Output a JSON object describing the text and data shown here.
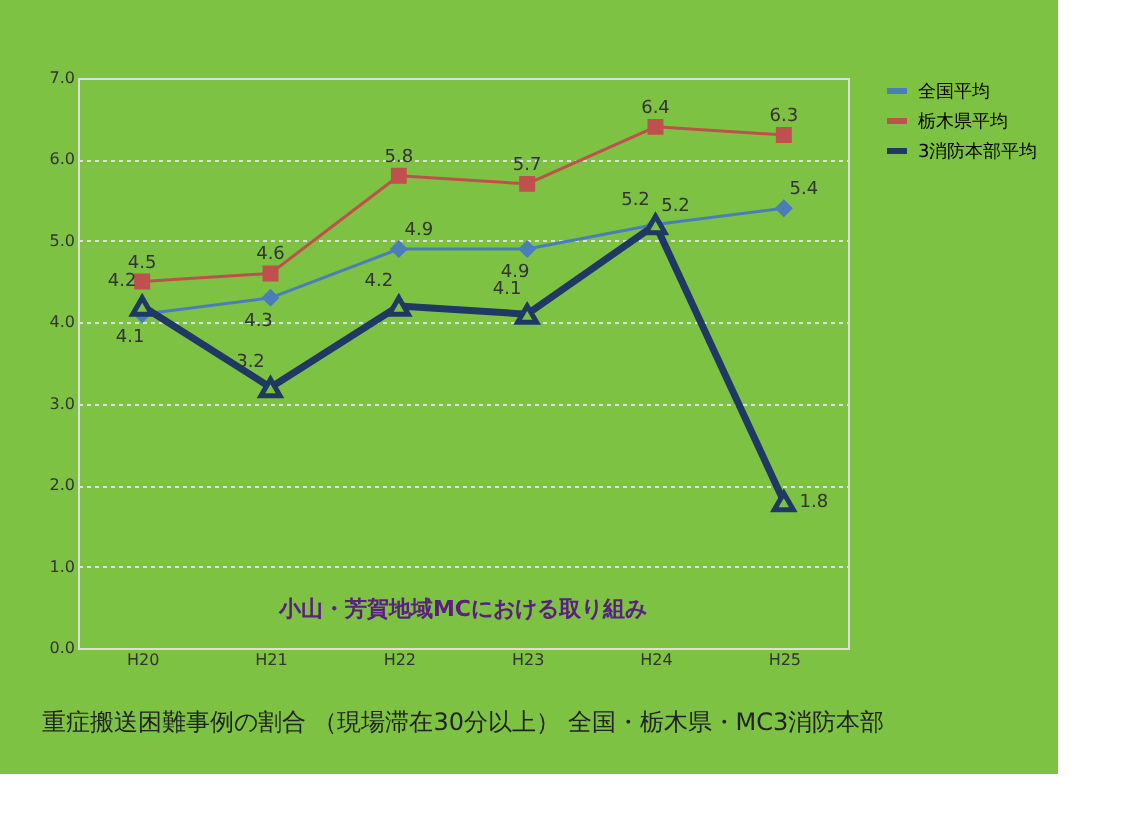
{
  "chart_data": {
    "type": "line",
    "title": "重症搬送困難事例の割合 （現場滞在30分以上） 全国・栃木県・MC3消防本部",
    "categories": [
      "H20",
      "H21",
      "H22",
      "H23",
      "H24",
      "H25"
    ],
    "series": [
      {
        "name": "全国平均",
        "color": "#4a7ebb",
        "values": [
          4.1,
          4.3,
          4.9,
          4.9,
          5.2,
          5.4
        ],
        "marker": "diamond"
      },
      {
        "name": "栃木県平均",
        "color": "#c0504d",
        "values": [
          4.5,
          4.6,
          5.8,
          5.7,
          6.4,
          6.3
        ],
        "marker": "square"
      },
      {
        "name": "3消防本部平均",
        "color": "#1f3864",
        "values": [
          4.2,
          3.2,
          4.2,
          4.1,
          5.2,
          1.8
        ],
        "marker": "triangle"
      }
    ],
    "ylim": [
      0,
      7
    ],
    "yticks": [
      {
        "value": 0,
        "label": "0.0"
      },
      {
        "value": 1,
        "label": "1.0"
      },
      {
        "value": 2,
        "label": "2.0"
      },
      {
        "value": 3,
        "label": "3.0"
      },
      {
        "value": 4,
        "label": "4.0"
      },
      {
        "value": 5,
        "label": "5.0"
      },
      {
        "value": 6,
        "label": "6.0"
      },
      {
        "value": 7,
        "label": "7.0"
      }
    ],
    "grid": "y",
    "legend": "right",
    "data_labels": true,
    "line_style": "solid",
    "annotations": [
      "小山・芳賀地域MCにおける取り組み"
    ]
  }
}
